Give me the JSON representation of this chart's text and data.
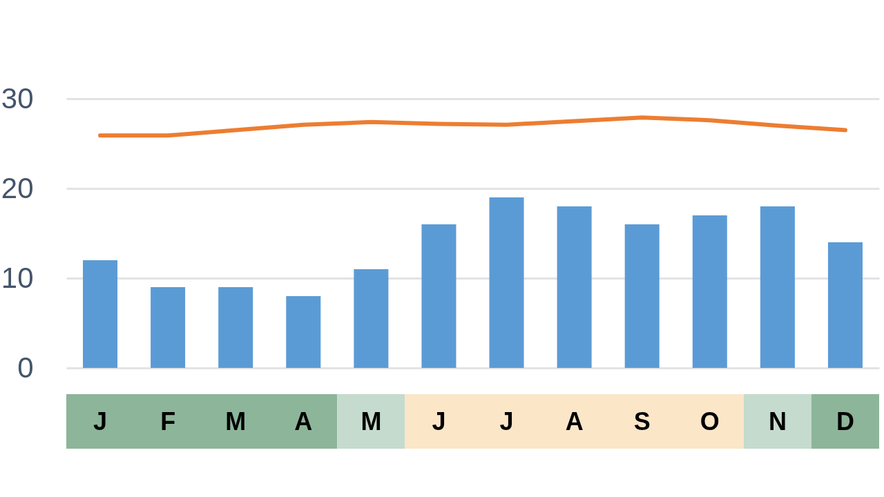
{
  "chart_data": {
    "type": "bar",
    "categories": [
      "J",
      "F",
      "M",
      "A",
      "M",
      "J",
      "J",
      "A",
      "S",
      "O",
      "N",
      "D"
    ],
    "series": [
      {
        "color": "#5b9bd5",
        "values": [
          12,
          9,
          9,
          8,
          11,
          16,
          19,
          18,
          16,
          17,
          18,
          14
        ]
      },
      {
        "type": "line",
        "color": "#ed7d31",
        "values": [
          25.9,
          25.9,
          26.5,
          27.1,
          27.4,
          27.2,
          27.1,
          27.5,
          27.9,
          27.6,
          27.0,
          26.5
        ]
      }
    ],
    "ylim": [
      0,
      30
    ],
    "yticks": [
      0,
      10,
      20,
      30
    ],
    "grid": "y"
  }
}
